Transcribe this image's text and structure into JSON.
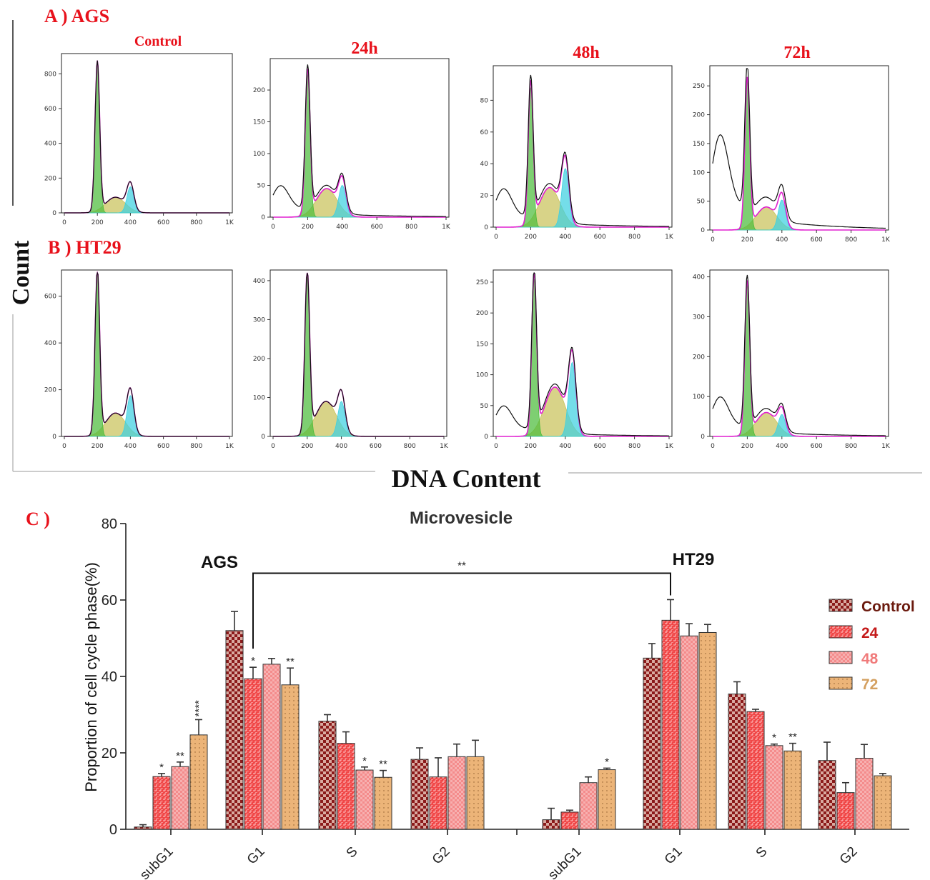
{
  "panel_a": {
    "label": "A ) AGS",
    "titles": [
      "Control",
      "24h",
      "48h",
      "72h"
    ],
    "hist": [
      {
        "g1": 200,
        "g1h": 860,
        "sh": 90,
        "g2h": 150,
        "deb": 0,
        "y_max": 900,
        "yticks": [
          0,
          200,
          400,
          600,
          800
        ]
      },
      {
        "g1": 200,
        "g1h": 225,
        "sh": 45,
        "g2h": 50,
        "deb": 45,
        "y_max": 245,
        "yticks": [
          0,
          50,
          100,
          150,
          200
        ]
      },
      {
        "g1": 200,
        "g1h": 88,
        "sh": 25,
        "g2h": 37,
        "deb": 22,
        "y_max": 100,
        "yticks": [
          0,
          20,
          40,
          60,
          80
        ]
      },
      {
        "g1": 200,
        "g1h": 258,
        "sh": 40,
        "g2h": 52,
        "deb": 150,
        "y_max": 280,
        "yticks": [
          0,
          50,
          100,
          150,
          200,
          250
        ]
      }
    ]
  },
  "panel_b": {
    "label": "B ) HT29",
    "hist": [
      {
        "g1": 200,
        "g1h": 700,
        "sh": 100,
        "g2h": 175,
        "deb": 0,
        "y_max": 700,
        "yticks": [
          0,
          200,
          400,
          600
        ]
      },
      {
        "g1": 200,
        "g1h": 410,
        "sh": 90,
        "g2h": 90,
        "deb": 0,
        "y_max": 420,
        "yticks": [
          0,
          100,
          200,
          300,
          400
        ]
      },
      {
        "g1": 220,
        "g1h": 255,
        "sh": 80,
        "g2h": 120,
        "deb": 45,
        "y_max": 265,
        "yticks": [
          0,
          50,
          100,
          150,
          200,
          250
        ]
      },
      {
        "g1": 200,
        "g1h": 380,
        "sh": 60,
        "g2h": 55,
        "deb": 90,
        "y_max": 410,
        "yticks": [
          0,
          100,
          200,
          300,
          400
        ]
      }
    ]
  },
  "hist_xticks": [
    "0",
    "200",
    "400",
    "600",
    "800",
    "1K"
  ],
  "ylabel_hist": "Count",
  "xlabel_hist": "DNA Content",
  "panel_c_label": "C )",
  "colors": {
    "red_label": "#e8111b",
    "g1_fill": "#4cbc3c",
    "s_fill": "#c9c25a",
    "g2_fill": "#3fd0e0",
    "model_line": "#e020d0",
    "control_bar": "#8b1a1a",
    "h24_bar": "#f04848",
    "h48_bar": "#f48484",
    "h72_bar": "#e8b070"
  },
  "chart_data": {
    "type": "bar",
    "title": "Microvesicle",
    "ylabel": "Proportion of cell cycle phase(%)",
    "ylim": [
      0,
      80
    ],
    "yticks": [
      0,
      20,
      40,
      60,
      80
    ],
    "group_labels": [
      "AGS",
      "HT29"
    ],
    "categories": [
      "subG1",
      "G1",
      "S",
      "G2"
    ],
    "legend": [
      "Control",
      "24",
      "48",
      "72"
    ],
    "legend_colors": [
      "#6b1a0e",
      "#c41a1a",
      "#f07a7a",
      "#d4a060"
    ],
    "groups": [
      {
        "name": "AGS",
        "series": [
          {
            "name": "Control",
            "values": [
              0.6,
              52,
              28.3,
              18.3
            ],
            "errors": [
              0.6,
              5,
              1.7,
              3
            ]
          },
          {
            "name": "24",
            "values": [
              13.8,
              39.4,
              22.5,
              13.7
            ],
            "errors": [
              0.8,
              3,
              3,
              5
            ]
          },
          {
            "name": "48",
            "values": [
              16.4,
              43.2,
              15.5,
              19
            ],
            "errors": [
              1.2,
              1.5,
              0.8,
              3.3
            ]
          },
          {
            "name": "72",
            "values": [
              24.7,
              37.8,
              13.6,
              19
            ],
            "errors": [
              4,
              4.4,
              1.8,
              4.3
            ]
          }
        ],
        "stars": [
          [
            "",
            "",
            "",
            ""
          ],
          [
            "*",
            "*",
            "",
            ""
          ],
          [
            "**",
            "",
            "*",
            ""
          ],
          [
            "****",
            "**",
            "**",
            ""
          ]
        ]
      },
      {
        "name": "HT29",
        "series": [
          {
            "name": "Control",
            "values": [
              2.5,
              44.8,
              35.4,
              18
            ],
            "errors": [
              3,
              3.8,
              3.2,
              4.8
            ]
          },
          {
            "name": "24",
            "values": [
              4.5,
              54.7,
              30.8,
              9.6
            ],
            "errors": [
              0.5,
              5.4,
              0.6,
              2.6
            ]
          },
          {
            "name": "48",
            "values": [
              12.2,
              50.6,
              21.9,
              18.6
            ],
            "errors": [
              1.5,
              3.2,
              0.4,
              3.6
            ]
          },
          {
            "name": "72",
            "values": [
              15.6,
              51.5,
              20.5,
              14
            ],
            "errors": [
              0.4,
              2.1,
              2,
              0.6
            ]
          }
        ],
        "stars": [
          [
            "",
            "",
            "",
            ""
          ],
          [
            "",
            "",
            "",
            ""
          ],
          [
            "",
            "",
            "*",
            ""
          ],
          [
            "*",
            "",
            "**",
            ""
          ]
        ]
      }
    ],
    "bracket": {
      "from": "AGS 24 G1",
      "to": "HT29 24 G1",
      "label": "**"
    }
  }
}
